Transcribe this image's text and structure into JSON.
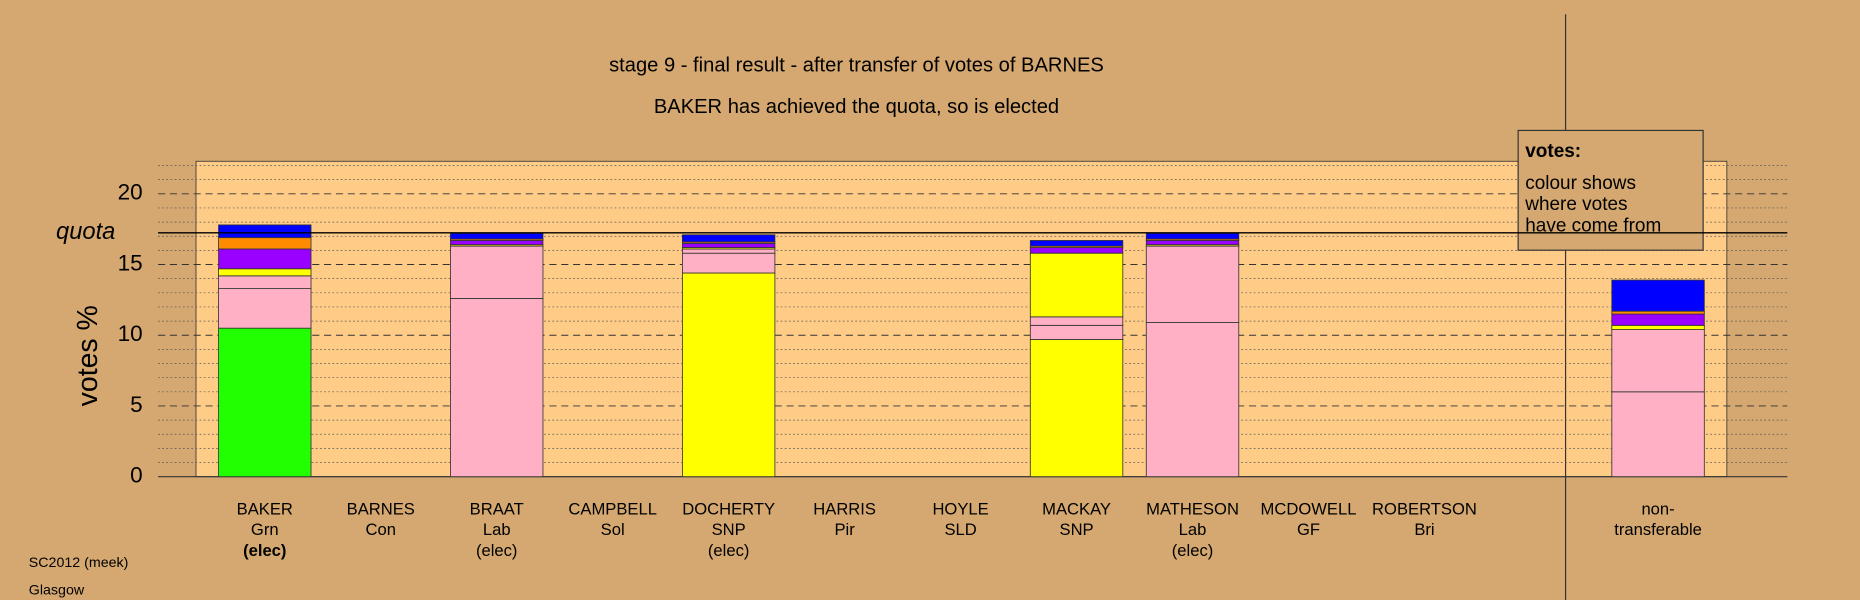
{
  "chart_data": {
    "type": "stacked_bar",
    "title": "stage 9 - final result - after transfer of votes of BARNES",
    "subtitle": "BAKER has achieved the quota, so is elected",
    "y_label": "votes %",
    "quota_label": "quota",
    "quota": 17.24,
    "categories": [
      [
        "BAKER",
        "Grn",
        "(elec)"
      ],
      [
        "BARNES",
        "Con"
      ],
      [
        "BRAAT",
        "Lab",
        "(elec)"
      ],
      [
        "CAMPBELL",
        "Sol"
      ],
      [
        "DOCHERTY",
        "SNP",
        "(elec)"
      ],
      [
        "HARRIS",
        "Pir"
      ],
      [
        "HOYLE",
        "SLD"
      ],
      [
        "MACKAY",
        "SNP"
      ],
      [
        "MATHESON",
        "Lab",
        "(elec)"
      ],
      [
        "MCDOWELL",
        "GF"
      ],
      [
        "ROBERTSON",
        "Bri"
      ],
      [
        "non-",
        "transferable"
      ]
    ],
    "series": [
      {
        "color": "#22ff00",
        "values": [
          10.5,
          0,
          0,
          0,
          0,
          0,
          0,
          0,
          0,
          0,
          0,
          0
        ]
      },
      {
        "color": "#ffff00",
        "values": [
          0,
          0,
          0,
          0,
          14.4,
          0,
          0,
          9.7,
          0,
          0,
          0,
          0
        ]
      },
      {
        "color": "#ffb0c4",
        "values": [
          2.8,
          0,
          12.6,
          0,
          1.4,
          0,
          0,
          1.0,
          10.9,
          0,
          0,
          6.0
        ]
      },
      {
        "color": "#ffb0c4",
        "values": [
          0.9,
          0,
          3.7,
          0,
          0.3,
          0,
          0,
          0.6,
          5.4,
          0,
          0,
          4.4
        ]
      },
      {
        "color": "#ffff00",
        "values": [
          0.5,
          0,
          0.1,
          0,
          0.1,
          0,
          0,
          4.5,
          0.1,
          0,
          0,
          0.3
        ]
      },
      {
        "color": "#9900ff",
        "values": [
          1.4,
          0,
          0.3,
          0,
          0.3,
          0,
          0,
          0.4,
          0.3,
          0,
          0,
          0.8
        ]
      },
      {
        "color": "#ff8c00",
        "values": [
          0.8,
          0,
          0.1,
          0,
          0.1,
          0,
          0,
          0.1,
          0.1,
          0,
          0,
          0.2
        ]
      },
      {
        "color": "#0000ff",
        "values": [
          0.9,
          0,
          0.4,
          0,
          0.5,
          0,
          0,
          0.4,
          0.4,
          0,
          0,
          2.2
        ]
      }
    ],
    "ylim": [
      0,
      22.3
    ],
    "yticks": [
      0,
      5,
      10,
      15,
      20
    ],
    "minor_yticks": [
      1,
      2,
      3,
      4,
      6,
      7,
      8,
      9,
      11,
      12,
      13,
      14,
      16,
      17,
      18,
      19,
      21,
      22
    ],
    "legend": {
      "title": "votes:",
      "lines": [
        "colour shows",
        "where votes",
        "have come from"
      ]
    },
    "footer": [
      "SC2012 (meek)",
      "Glasgow"
    ]
  }
}
